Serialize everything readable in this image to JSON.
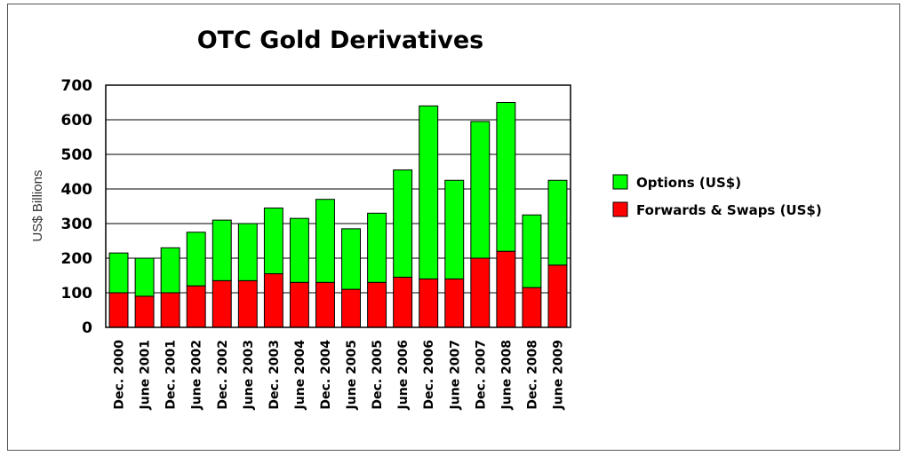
{
  "chart_data": {
    "type": "bar",
    "stacked": true,
    "title": "OTC Gold Derivatives",
    "ylabel": "US$ Billions",
    "xlabel": "",
    "ylim": [
      0,
      700
    ],
    "yticks": [
      0,
      100,
      200,
      300,
      400,
      500,
      600,
      700
    ],
    "grid": true,
    "legend_position": "right",
    "categories": [
      "Dec. 2000",
      "June 2001",
      "Dec. 2001",
      "June 2002",
      "Dec. 2002",
      "June 2003",
      "Dec. 2003",
      "June 2004",
      "Dec. 2004",
      "June 2005",
      "Dec. 2005",
      "June 2006",
      "Dec. 2006",
      "June 2007",
      "Dec. 2007",
      "June 2008",
      "Dec. 2008",
      "June 2009"
    ],
    "series": [
      {
        "name": "Forwards & Swaps (US$)",
        "color": "#ff0000",
        "values": [
          100,
          90,
          100,
          120,
          135,
          135,
          155,
          130,
          130,
          110,
          130,
          145,
          140,
          140,
          200,
          220,
          115,
          180
        ]
      },
      {
        "name": "Options (US$)",
        "color": "#00ff00",
        "values": [
          115,
          110,
          130,
          155,
          175,
          165,
          190,
          185,
          240,
          175,
          200,
          310,
          500,
          285,
          395,
          430,
          210,
          245
        ]
      }
    ],
    "legend_order": [
      "Options (US$)",
      "Forwards & Swaps (US$)"
    ]
  }
}
